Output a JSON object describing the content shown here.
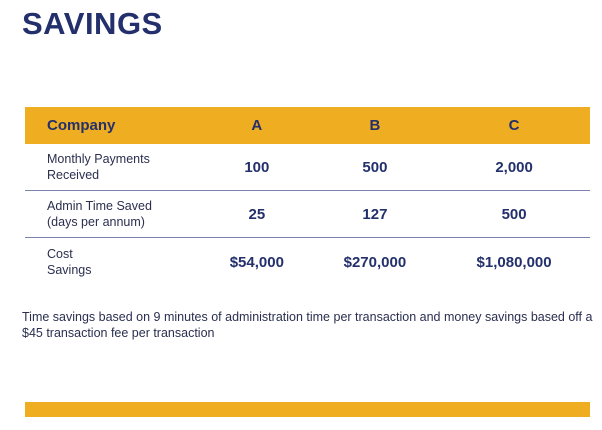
{
  "title": "SAVINGS",
  "table": {
    "headers": [
      "Company",
      "A",
      "B",
      "C"
    ],
    "rows": [
      {
        "label_line1": "Monthly Payments",
        "label_line2": "Received",
        "values": [
          "100",
          "500",
          "2,000"
        ]
      },
      {
        "label_line1": "Admin Time Saved",
        "label_line2": "(days per annum)",
        "values": [
          "25",
          "127",
          "500"
        ]
      },
      {
        "label_line1": "Cost",
        "label_line2": "Savings",
        "values": [
          "$54,000",
          "$270,000",
          "$1,080,000"
        ]
      }
    ]
  },
  "footnote": "Time savings based on 9 minutes of administration time per  transaction and money savings based off a $45 transaction  fee per transaction",
  "colors": {
    "accent": "#efad22",
    "navy": "#23306b"
  }
}
